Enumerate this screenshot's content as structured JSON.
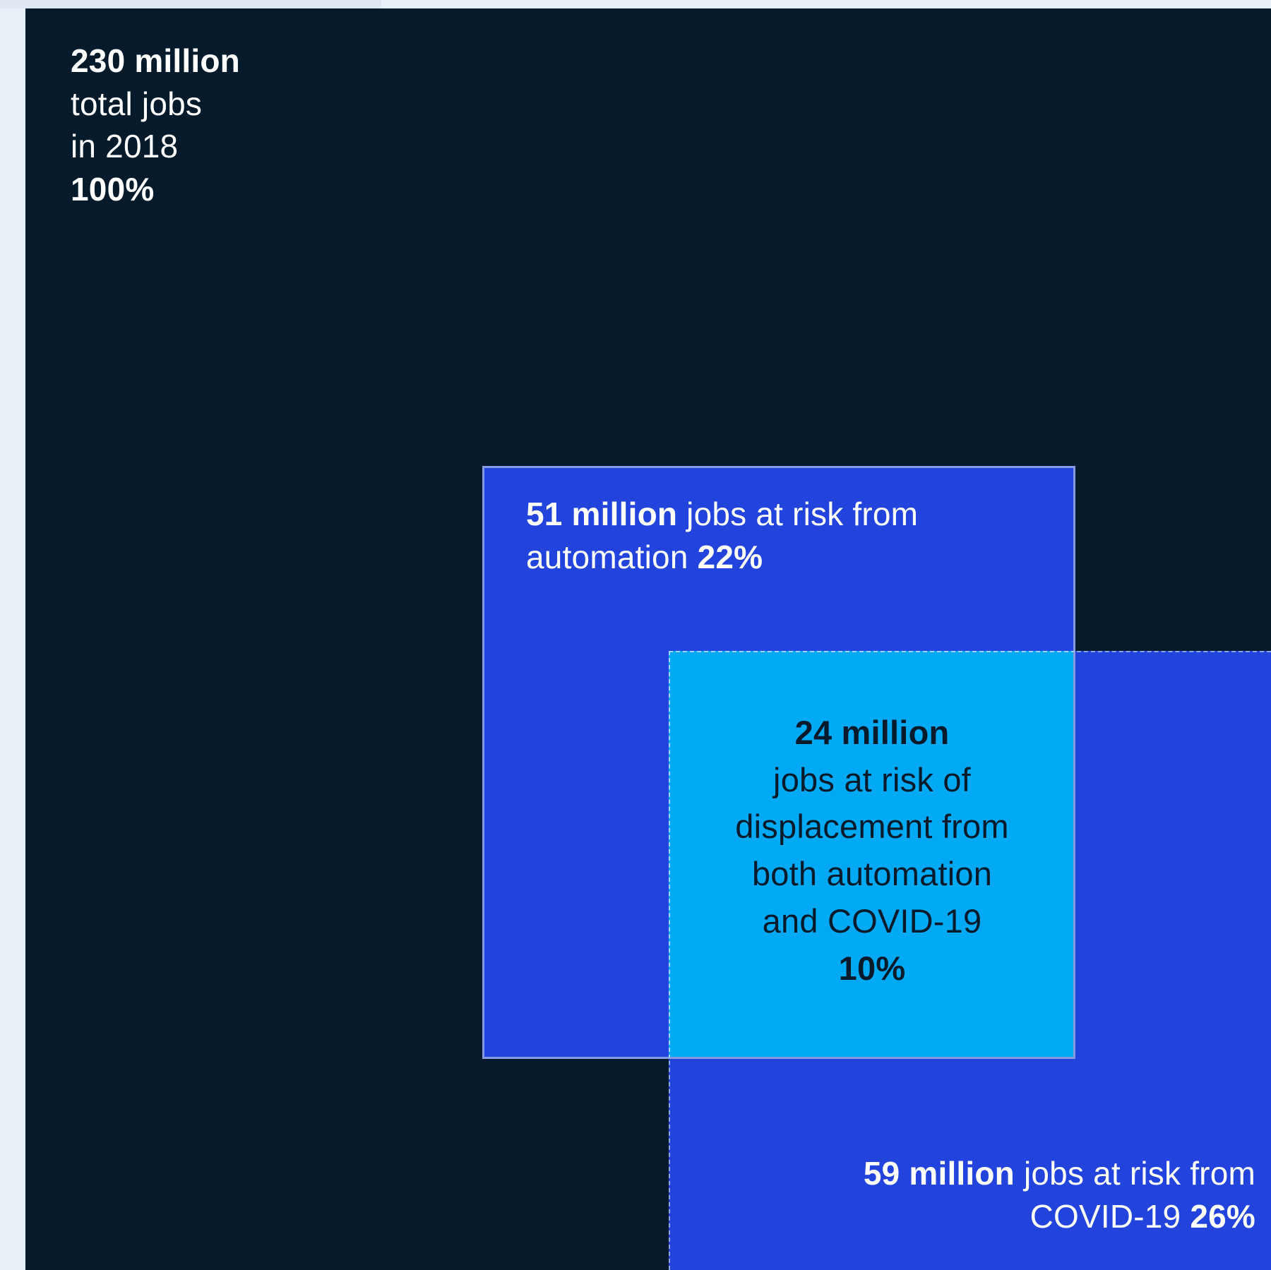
{
  "total": {
    "value": "230 million",
    "line1": "total jobs",
    "line2": "in 2018",
    "percent": "100%"
  },
  "automation": {
    "value": "51 million",
    "text": " jobs at risk from automation ",
    "percent": "22%"
  },
  "covid": {
    "value": "59 million",
    "text": " jobs at risk from COVID-19 ",
    "percent": "26%"
  },
  "overlap": {
    "value": "24 million",
    "lines": [
      "jobs at risk of",
      "displacement from",
      "both automation",
      "and COVID-19"
    ],
    "percent": "10%"
  },
  "colors": {
    "background": "#051a2a",
    "automation_box": "#2244dd",
    "covid_box": "#2244dd",
    "overlap_box": "#00a9f4"
  }
}
